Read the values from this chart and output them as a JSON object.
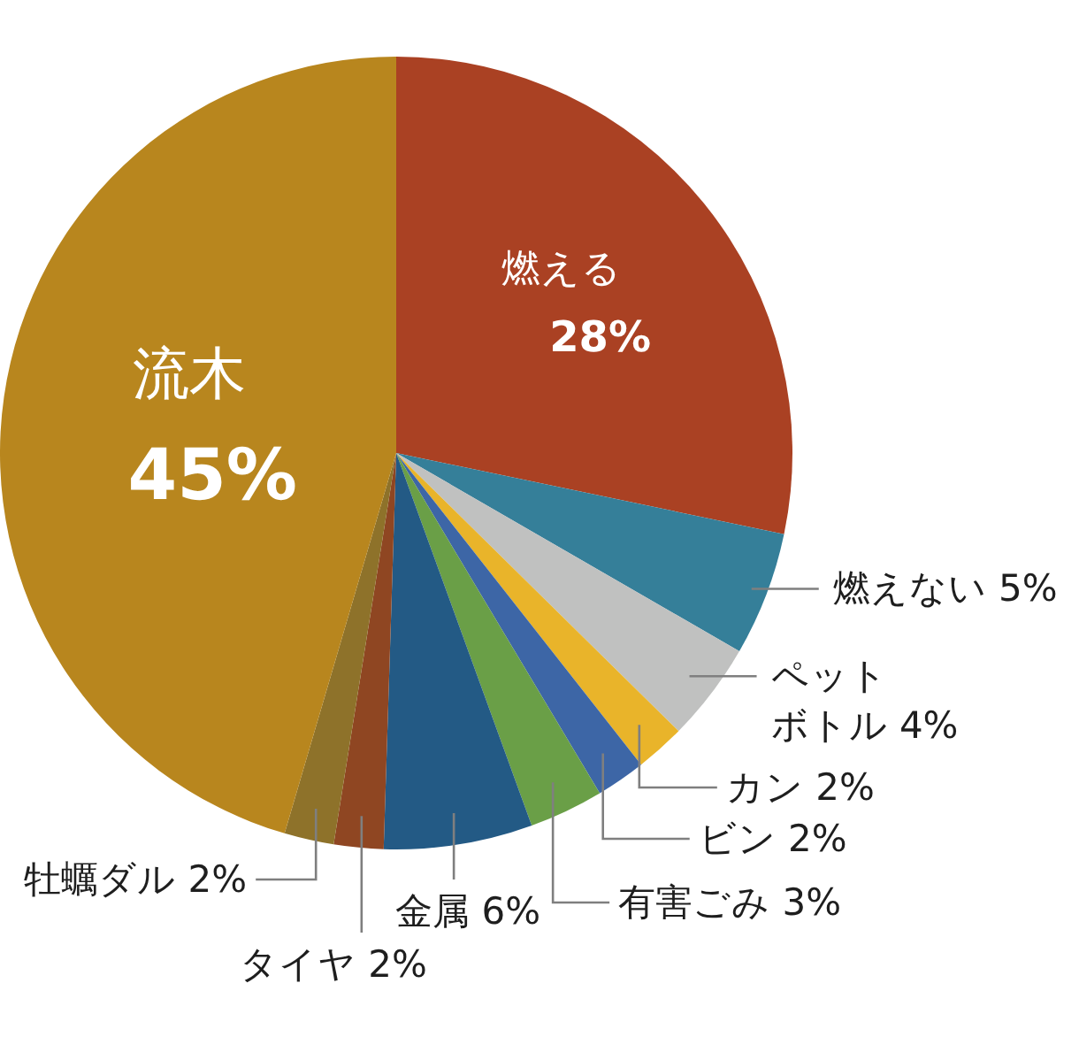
{
  "chart_data": {
    "type": "pie",
    "categories": [
      "燃える",
      "燃えない",
      "ペットボトル",
      "カン",
      "ビン",
      "有害ごみ",
      "金属",
      "タイヤ",
      "牡蠣ダル",
      "流木"
    ],
    "values": [
      28,
      5,
      4,
      2,
      2,
      3,
      6,
      2,
      2,
      45
    ],
    "colors": [
      "#aa4123",
      "#357f99",
      "#c0c1c0",
      "#e9b42a",
      "#3d66a6",
      "#6a9f47",
      "#235a85",
      "#8f4622",
      "#8e722a",
      "#b8861e"
    ],
    "value_labels": [
      "28%",
      "5%",
      "4%",
      "2%",
      "2%",
      "3%",
      "6%",
      "2%",
      "2%",
      "45%"
    ]
  }
}
